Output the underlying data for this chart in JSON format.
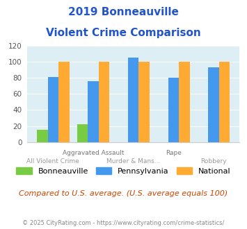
{
  "title_line1": "2019 Bonneauville",
  "title_line2": "Violent Crime Comparison",
  "groups": [
    {
      "label": "All Violent Crime",
      "bonneauville": 15,
      "pennsylvania": 81,
      "national": 100
    },
    {
      "label": "Aggravated Assault",
      "bonneauville": 22,
      "pennsylvania": 76,
      "national": 100
    },
    {
      "label": "Murder & Mans...",
      "bonneauville": 0,
      "pennsylvania": 105,
      "national": 100
    },
    {
      "label": "Rape",
      "bonneauville": 0,
      "pennsylvania": 80,
      "national": 100
    },
    {
      "label": "Robbery",
      "bonneauville": 0,
      "pennsylvania": 93,
      "national": 100
    }
  ],
  "color_bonneauville": "#77cc44",
  "color_pennsylvania": "#4499ee",
  "color_national": "#ffaa33",
  "title_color": "#2255cc",
  "plot_bg": "#ddeef5",
  "ylim": [
    0,
    120
  ],
  "yticks": [
    0,
    20,
    40,
    60,
    80,
    100,
    120
  ],
  "note": "Compared to U.S. average. (U.S. average equals 100)",
  "footer": "© 2025 CityRating.com - https://www.cityrating.com/crime-statistics/",
  "legend_labels": [
    "Bonneauville",
    "Pennsylvania",
    "National"
  ]
}
